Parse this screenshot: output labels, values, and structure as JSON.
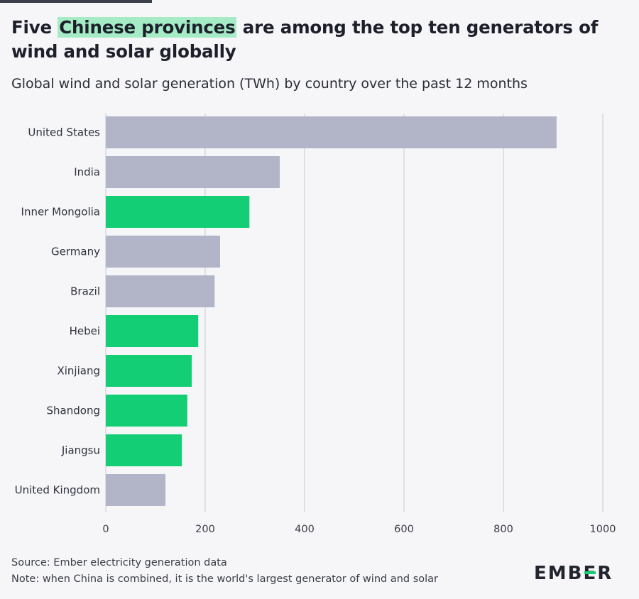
{
  "header": {
    "title_pre": "Five ",
    "title_highlight": "Chinese provinces",
    "title_post": " are among the top ten generators of wind and solar globally",
    "subtitle": "Global wind and solar generation (TWh) by country over the past 12 months"
  },
  "colors": {
    "country": "#b1b5c7",
    "chinese_province": "#13ce74",
    "highlight": "#a5ecc6",
    "grid": "#cfd1d9"
  },
  "chart_data": {
    "type": "bar",
    "orientation": "horizontal",
    "title": "Five Chinese provinces are among the top ten generators of wind and solar globally",
    "subtitle": "Global wind and solar generation (TWh) by country over the past 12 months",
    "categories": [
      "United States",
      "India",
      "Inner Mongolia",
      "Germany",
      "Brazil",
      "Hebei",
      "Xinjiang",
      "Shandong",
      "Jiangsu",
      "United Kingdom"
    ],
    "values": [
      907,
      350,
      289,
      230,
      219,
      186,
      173,
      164,
      153,
      120
    ],
    "group": [
      "country",
      "country",
      "chinese_province",
      "country",
      "country",
      "chinese_province",
      "chinese_province",
      "chinese_province",
      "chinese_province",
      "country"
    ],
    "xlim": [
      0,
      1000
    ],
    "xticks": [
      0,
      200,
      400,
      600,
      800,
      1000
    ],
    "xlabel": "",
    "ylabel": "",
    "grid": true
  },
  "footer": {
    "source": "Source: Ember electricity generation data",
    "note": "Note: when China is combined, it is the world's largest generator of wind and solar"
  },
  "logo": {
    "text_pre": "EMB",
    "text_mark": "E",
    "text_post": "R"
  }
}
